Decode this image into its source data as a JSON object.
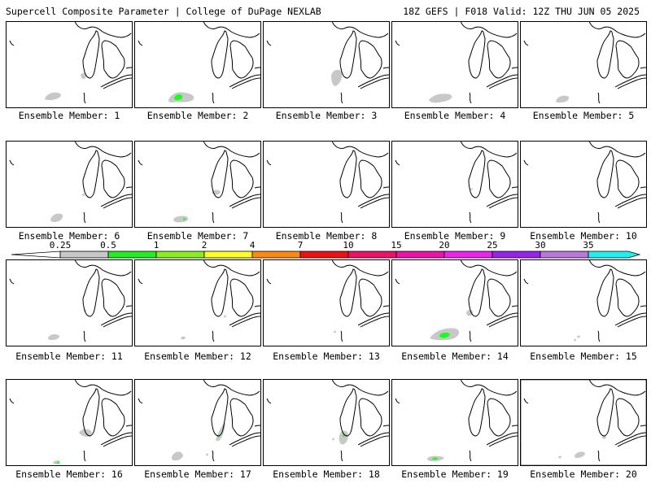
{
  "header": {
    "left": "Supercell Composite Parameter | College of DuPage NEXLAB",
    "right": "18Z GEFS | F018 Valid: 12Z THU JUN 05 2025"
  },
  "colors": {
    "land_outline": "#000000",
    "low_fill": "#c8c8c8",
    "green_fill": "#1aff1a"
  },
  "colorbar": {
    "levels": [
      "0.25",
      "0.5",
      "1",
      "2",
      "4",
      "7",
      "10",
      "15",
      "20",
      "25",
      "30",
      "35"
    ],
    "colors": [
      "#c8c8c8",
      "#22ee22",
      "#88ee22",
      "#ffff22",
      "#ff8811",
      "#ee1111",
      "#ee1166",
      "#ee11aa",
      "#ee22ee",
      "#9922ee",
      "#bb77dd",
      "#22eeee"
    ]
  },
  "members": [
    {
      "caption": "Ensemble Member: 1",
      "max_category": "0.25-0.5"
    },
    {
      "caption": "Ensemble Member: 2",
      "max_category": "0.5-1"
    },
    {
      "caption": "Ensemble Member: 3",
      "max_category": "0.25-0.5"
    },
    {
      "caption": "Ensemble Member: 4",
      "max_category": "0.25-0.5"
    },
    {
      "caption": "Ensemble Member: 5",
      "max_category": "0.25-0.5"
    },
    {
      "caption": "Ensemble Member: 6",
      "max_category": "0.25-0.5"
    },
    {
      "caption": "Ensemble Member: 7",
      "max_category": "0.5-1"
    },
    {
      "caption": "Ensemble Member: 8",
      "max_category": "none"
    },
    {
      "caption": "Ensemble Member: 9",
      "max_category": "0.25-0.5"
    },
    {
      "caption": "Ensemble Member: 10",
      "max_category": "none"
    },
    {
      "caption": "Ensemble Member: 11",
      "max_category": "0.25-0.5"
    },
    {
      "caption": "Ensemble Member: 12",
      "max_category": "0.25-0.5"
    },
    {
      "caption": "Ensemble Member: 13",
      "max_category": "0.25-0.5"
    },
    {
      "caption": "Ensemble Member: 14",
      "max_category": "0.5-1"
    },
    {
      "caption": "Ensemble Member: 15",
      "max_category": "0.25-0.5"
    },
    {
      "caption": "Ensemble Member: 16",
      "max_category": "0.5-1"
    },
    {
      "caption": "Ensemble Member: 17",
      "max_category": "0.5-1"
    },
    {
      "caption": "Ensemble Member: 18",
      "max_category": "0.5-1"
    },
    {
      "caption": "Ensemble Member: 19",
      "max_category": "0.5-1"
    },
    {
      "caption": "Ensemble Member: 20",
      "max_category": "0.25-0.5"
    }
  ]
}
